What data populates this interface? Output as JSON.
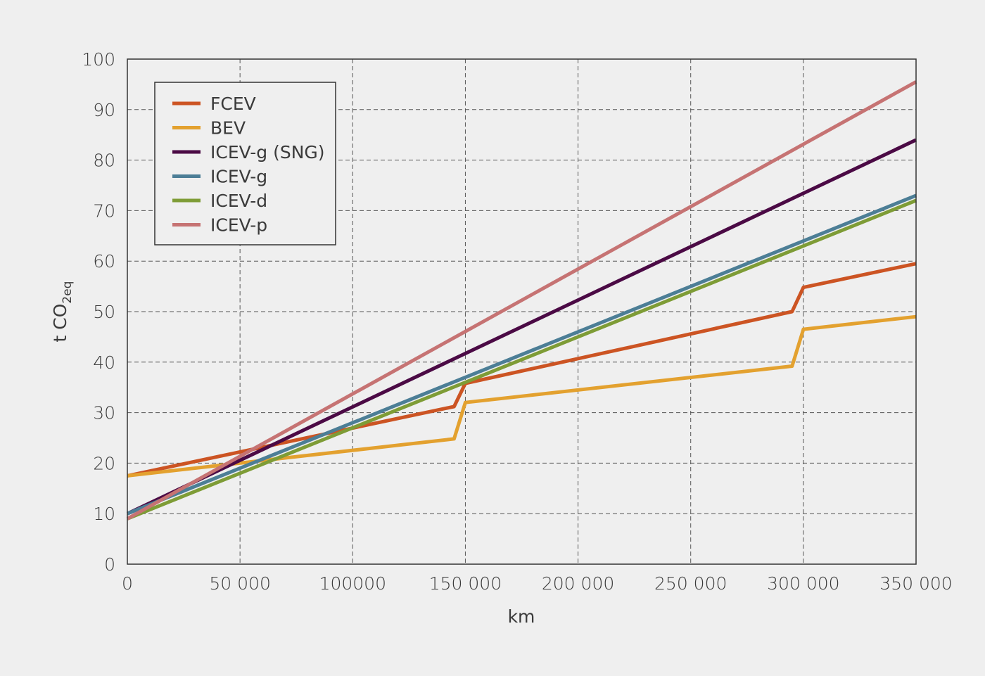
{
  "chart_data": {
    "type": "line",
    "title": "",
    "xlabel": "km",
    "ylabel": {
      "main": "t CO",
      "sub": "2eq"
    },
    "xlim": [
      0,
      350000
    ],
    "ylim": [
      0,
      100
    ],
    "grid": true,
    "legend_position": "top-left",
    "x_ticks": [
      {
        "value": 0,
        "label": "0"
      },
      {
        "value": 50000,
        "label": "50 000"
      },
      {
        "value": 100000,
        "label": "100000"
      },
      {
        "value": 150000,
        "label": "150 000"
      },
      {
        "value": 200000,
        "label": "200 000"
      },
      {
        "value": 250000,
        "label": "250 000"
      },
      {
        "value": 300000,
        "label": "300 000"
      },
      {
        "value": 350000,
        "label": "350 000"
      }
    ],
    "y_ticks": [
      {
        "value": 0,
        "label": "0"
      },
      {
        "value": 10,
        "label": "10"
      },
      {
        "value": 20,
        "label": "20"
      },
      {
        "value": 30,
        "label": "30"
      },
      {
        "value": 40,
        "label": "40"
      },
      {
        "value": 50,
        "label": "50"
      },
      {
        "value": 60,
        "label": "60"
      },
      {
        "value": 70,
        "label": "70"
      },
      {
        "value": 80,
        "label": "80"
      },
      {
        "value": 90,
        "label": "90"
      },
      {
        "value": 100,
        "label": "100"
      }
    ],
    "series": [
      {
        "name": "FCEV",
        "color": "#cc5423",
        "points": [
          [
            0,
            17.5
          ],
          [
            145000,
            31.2
          ],
          [
            150000,
            35.8
          ],
          [
            295000,
            50.0
          ],
          [
            300000,
            54.8
          ],
          [
            350000,
            59.5
          ]
        ]
      },
      {
        "name": "BEV",
        "color": "#e3a12f",
        "points": [
          [
            0,
            17.5
          ],
          [
            145000,
            24.8
          ],
          [
            150000,
            32.0
          ],
          [
            295000,
            39.2
          ],
          [
            300000,
            46.5
          ],
          [
            350000,
            49.0
          ]
        ]
      },
      {
        "name": "ICEV-g (SNG)",
        "color": "#4b0a45",
        "points": [
          [
            0,
            10.0
          ],
          [
            350000,
            84.0
          ]
        ]
      },
      {
        "name": "ICEV-g",
        "color": "#4c7e96",
        "points": [
          [
            0,
            10.0
          ],
          [
            350000,
            73.0
          ]
        ]
      },
      {
        "name": "ICEV-d",
        "color": "#7e9c36",
        "points": [
          [
            0,
            9.0
          ],
          [
            350000,
            72.0
          ]
        ]
      },
      {
        "name": "ICEV-p",
        "color": "#c67373",
        "points": [
          [
            0,
            9.0
          ],
          [
            350000,
            95.5
          ]
        ]
      }
    ]
  }
}
